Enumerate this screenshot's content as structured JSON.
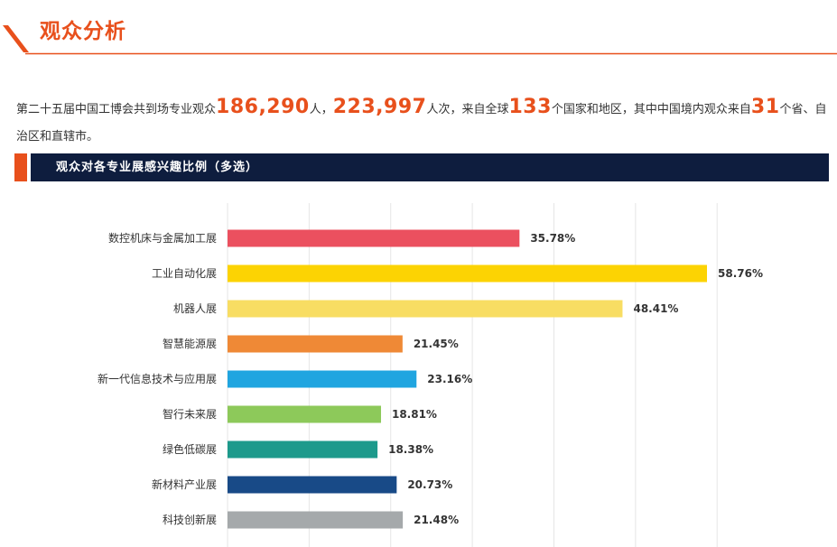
{
  "header": {
    "title": "观众分析",
    "accent_color": "#e8501c"
  },
  "summary": {
    "p1": "第二十五届中国工博会共到场专业观众",
    "visitors": "186,290",
    "p2": "人，",
    "visits": "223,997",
    "p3": "人次，来自全球",
    "countries": "133",
    "p4": "个国家和地区，其中中国境内观众来自",
    "provinces": "31",
    "p5": "个省、自治区和直辖市。"
  },
  "section": {
    "title": "观众对各专业展感兴趣比例（多选）",
    "bar_color": "#0e1d3e"
  },
  "chart_data": {
    "type": "bar",
    "orientation": "horizontal",
    "title": "观众对各专业展感兴趣比例（多选）",
    "xlim": [
      0,
      65
    ],
    "grid": true,
    "categories": [
      "数控机床与金属加工展",
      "工业自动化展",
      "机器人展",
      "智慧能源展",
      "新一代信息技术与应用展",
      "智行未来展",
      "绿色低碳展",
      "新材料产业展",
      "科技创新展"
    ],
    "values": [
      35.78,
      58.76,
      48.41,
      21.45,
      23.16,
      18.81,
      18.38,
      20.73,
      21.48
    ],
    "value_labels": [
      "35.78%",
      "58.76%",
      "48.41%",
      "21.45%",
      "23.16%",
      "18.81%",
      "18.38%",
      "20.73%",
      "21.48%"
    ],
    "colors": [
      "#eb505f",
      "#fcd303",
      "#f8dd63",
      "#ef8936",
      "#20a5e0",
      "#8dc95a",
      "#1d9a8c",
      "#184a87",
      "#a5a9ab"
    ]
  }
}
